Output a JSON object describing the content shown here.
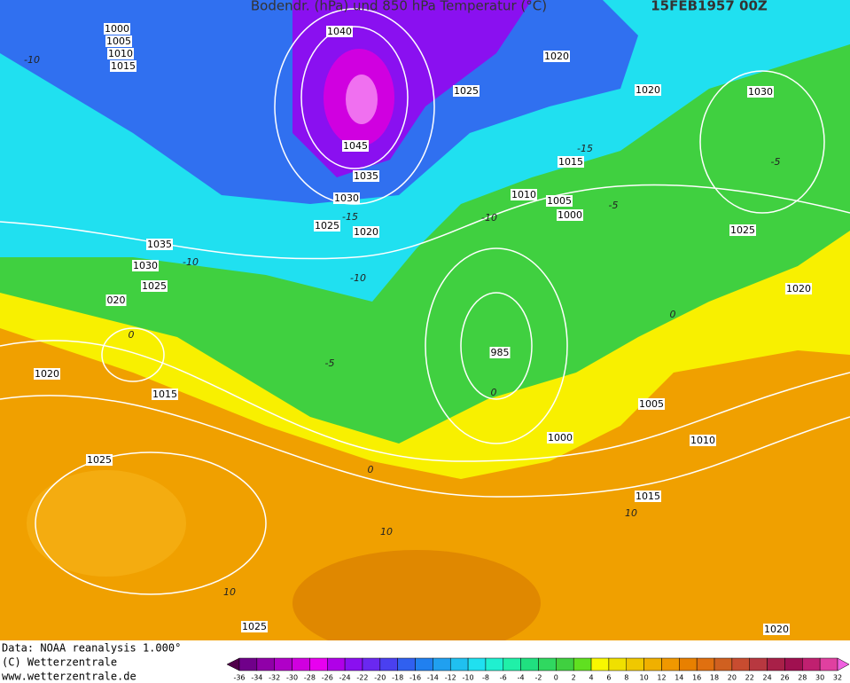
{
  "header": {
    "title": "Bodendr. (hPa) und 850 hPa Temperatur (°C)",
    "timestamp": "15FEB1957 00Z"
  },
  "isobar_labels": [
    "1000",
    "1005",
    "1010",
    "1015",
    "1040",
    "1020",
    "1025",
    "1020",
    "1030",
    "1045",
    "1035",
    "1015",
    "1030",
    "1010",
    "1005",
    "1000",
    "1025",
    "1020",
    "1025",
    "1035",
    "1030",
    "1025",
    "1020",
    "020",
    "1020",
    "1015",
    "985",
    "1005",
    "1000",
    "1010",
    "1025",
    "1015",
    "1025",
    "1020"
  ],
  "isotherm_labels": [
    "-10",
    "-15",
    "-5",
    "-10",
    "-15",
    "-5",
    "-10",
    "-10",
    "0",
    "-5",
    "0",
    "0",
    "0",
    "10",
    "10",
    "10"
  ],
  "footer": {
    "data_source": "Data: NOAA reanalysis 1.000°",
    "copyright": "(C) Wetterzentrale",
    "website": "www.wetterzentrale.de"
  },
  "colorbar": {
    "labels": [
      -36,
      -34,
      -32,
      -30,
      -28,
      -26,
      -24,
      -22,
      -20,
      -18,
      -16,
      -14,
      -12,
      -10,
      -8,
      -6,
      -4,
      -2,
      0,
      2,
      4,
      6,
      8,
      10,
      12,
      14,
      16,
      18,
      20,
      22,
      24,
      26,
      28,
      30,
      32
    ],
    "colors": [
      "#50004a",
      "#70008a",
      "#9000a8",
      "#b000c8",
      "#d000e0",
      "#e800f0",
      "#b000e8",
      "#8a10f0",
      "#6a28f0",
      "#4a40f0",
      "#3060f0",
      "#2080f0",
      "#20a0f0",
      "#20c0f0",
      "#20e0f0",
      "#20f0d0",
      "#20f0a8",
      "#20e080",
      "#30d860",
      "#40d040",
      "#60e020",
      "#f8f800",
      "#f0e000",
      "#f0c800",
      "#f0b000",
      "#f09800",
      "#e88000",
      "#e07010",
      "#d06020",
      "#c84c30",
      "#b83840",
      "#a82048",
      "#a01050",
      "#c02070",
      "#e040a0",
      "#f060e0"
    ]
  }
}
